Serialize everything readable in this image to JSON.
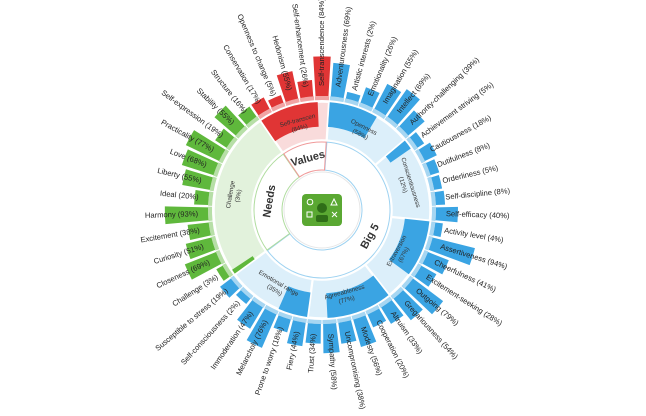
{
  "chart_data": {
    "type": "sunburst",
    "title": "",
    "center_icon": "personality-insights-icon",
    "categories": [
      {
        "name": "Big 5",
        "level": 12,
        "color": "#3aa4e3",
        "traits": [
          {
            "name": "Openness",
            "level": 58,
            "facets": [
              {
                "label": "Adventurousness (69%)",
                "value": 69
              },
              {
                "label": "Artistic interests (2%)",
                "value": 2
              },
              {
                "label": "Emotionality (26%)",
                "value": 26
              },
              {
                "label": "Imagination (55%)",
                "value": 55
              },
              {
                "label": "Intellect (69%)",
                "value": 69
              },
              {
                "label": "Authority-challenging (39%)",
                "value": 39
              }
            ]
          },
          {
            "name": "Conscientiousness",
            "level": 12,
            "facets": [
              {
                "label": "Achievement striving (5%)",
                "value": 5
              },
              {
                "label": "Cautiousness (18%)",
                "value": 18
              },
              {
                "label": "Dutifulness (8%)",
                "value": 8
              },
              {
                "label": "Orderliness (5%)",
                "value": 5
              },
              {
                "label": "Self-discipline (8%)",
                "value": 8
              },
              {
                "label": "Self-efficacy (40%)",
                "value": 40
              }
            ]
          },
          {
            "name": "Extraversion",
            "level": 67,
            "facets": [
              {
                "label": "Activity level (4%)",
                "value": 4
              },
              {
                "label": "Assertiveness (94%)",
                "value": 94
              },
              {
                "label": "Cheerfulness (41%)",
                "value": 41
              },
              {
                "label": "Excitement-seeking (28%)",
                "value": 28
              },
              {
                "label": "Outgoing (79%)",
                "value": 79
              },
              {
                "label": "Gregariousness (54%)",
                "value": 54
              }
            ]
          },
          {
            "name": "Agreeableness",
            "level": 77,
            "facets": [
              {
                "label": "Altruism (33%)",
                "value": 33
              },
              {
                "label": "Cooperation (20%)",
                "value": 20
              },
              {
                "label": "Modesty (56%)",
                "value": 56
              },
              {
                "label": "Uncompromising (38%)",
                "value": 38
              },
              {
                "label": "Sympathy (58%)",
                "value": 58
              },
              {
                "label": "Trust (34%)",
                "value": 34
              }
            ]
          },
          {
            "name": "Emotional range",
            "level": 35,
            "facets": [
              {
                "label": "Fiery (44%)",
                "value": 44
              },
              {
                "label": "Prone to worry (18%)",
                "value": 18
              },
              {
                "label": "Melancholy (76%)",
                "value": 76
              },
              {
                "label": "Immoderation (47%)",
                "value": 47
              },
              {
                "label": "Self-consciousness (2%)",
                "value": 2
              },
              {
                "label": "Susceptible to stress (19%)",
                "value": 19
              }
            ]
          }
        ]
      },
      {
        "name": "Needs",
        "level": 3,
        "color": "#5fb83c",
        "traits": [
          {
            "name": "Challenge",
            "level": 3,
            "facets": [
              {
                "label": "Challenge (3%)",
                "value": 3
              },
              {
                "label": "Closeness (69%)",
                "value": 69
              },
              {
                "label": "Curiosity (51%)",
                "value": 51
              },
              {
                "label": "Excitement (38%)",
                "value": 38
              },
              {
                "label": "Harmony (93%)",
                "value": 93
              },
              {
                "label": "Ideal (20%)",
                "value": 20
              },
              {
                "label": "Liberty (55%)",
                "value": 55
              },
              {
                "label": "Love (68%)",
                "value": 68
              },
              {
                "label": "Practicality (77%)",
                "value": 77
              },
              {
                "label": "Self-expression (19%)",
                "value": 19
              },
              {
                "label": "Stability (55%)",
                "value": 55
              },
              {
                "label": "Structure (16%)",
                "value": 16
              }
            ]
          }
        ]
      },
      {
        "name": "Values",
        "level": 84,
        "color": "#e03535",
        "traits": [
          {
            "name": "Self-transcen",
            "level": 84,
            "facets": [
              {
                "label": "Conservation (17%)",
                "value": 17
              },
              {
                "label": "Openness to change (5%)",
                "value": 5
              },
              {
                "label": "Hedonism (55%)",
                "value": 55
              },
              {
                "label": "Self-enhancement (26%)",
                "value": 26
              },
              {
                "label": "Self-transcendence (84%)",
                "value": 84
              }
            ]
          }
        ]
      }
    ],
    "inner_trait_labels": [
      "Openness",
      "Conscientiousness",
      "Extraversion",
      "Agreeableness",
      "Emotional range",
      "Challenge",
      "Self-transcen"
    ],
    "inner_trait_values": [
      "(58%)",
      "(12%)",
      "(67%)",
      "(77%)",
      "(35%)",
      "(3%)",
      "(84%)"
    ]
  }
}
